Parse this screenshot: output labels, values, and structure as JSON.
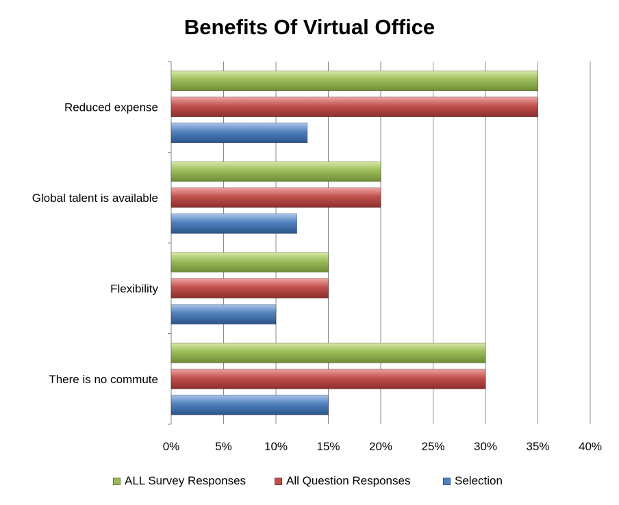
{
  "chart_data": {
    "type": "bar",
    "orientation": "horizontal",
    "title": "Benefits Of Virtual Office",
    "categories": [
      "Reduced expense",
      "Global talent is available",
      "Flexibility",
      "There is no commute"
    ],
    "series": [
      {
        "name": "ALL Survey Responses",
        "color": "#9BBB59",
        "values": [
          35,
          20,
          15,
          30
        ]
      },
      {
        "name": "All Question Responses",
        "color": "#C0504D",
        "values": [
          35,
          20,
          15,
          30
        ]
      },
      {
        "name": "Selection",
        "color": "#4F81BD",
        "values": [
          13,
          12,
          10,
          15
        ]
      }
    ],
    "x_ticks": [
      "0%",
      "5%",
      "10%",
      "15%",
      "20%",
      "25%",
      "30%",
      "35%",
      "40%"
    ],
    "xlim": [
      0,
      40
    ],
    "x_unit": "%",
    "grid": true,
    "legend_position": "bottom"
  }
}
